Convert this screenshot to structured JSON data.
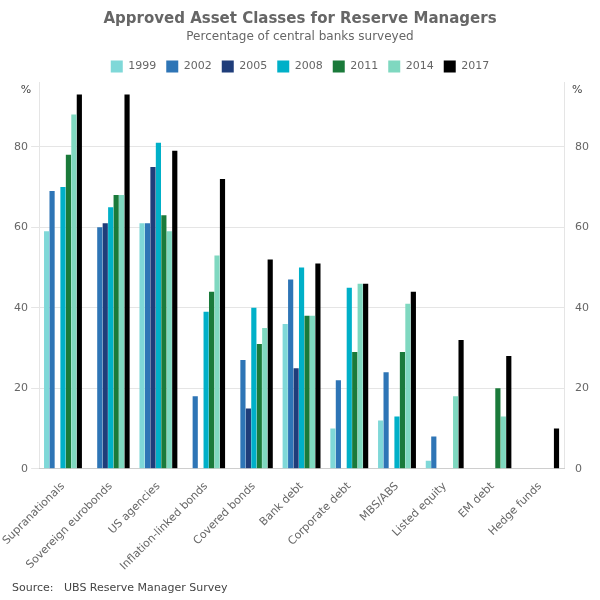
{
  "chart_data": {
    "type": "bar",
    "title": "Approved Asset Classes for Reserve Managers",
    "subtitle": "Percentage of central banks surveyed",
    "ylabel": "%",
    "y2label": "%",
    "source": "Source:   UBS Reserve Manager Survey",
    "categories": [
      "Supranationals",
      "Sovereign eurobonds",
      "US agencies",
      "Inflation-linked bonds",
      "Covered bonds",
      "Bank debt",
      "Corporate debt",
      "MBS/ABS",
      "Listed equity",
      "EM debt",
      "Hedge funds"
    ],
    "series": [
      {
        "name": "1999",
        "color": "#7fd8d8",
        "values": [
          59,
          0,
          61,
          0,
          0,
          36,
          10,
          12,
          2,
          0,
          0
        ]
      },
      {
        "name": "2002",
        "color": "#2e75b6",
        "values": [
          69,
          60,
          61,
          18,
          27,
          47,
          22,
          24,
          8,
          0,
          0
        ]
      },
      {
        "name": "2005",
        "color": "#1f3d7a",
        "values": [
          0,
          61,
          75,
          0,
          15,
          25,
          0,
          0,
          0,
          0,
          0
        ]
      },
      {
        "name": "2008",
        "color": "#00b0c8",
        "values": [
          70,
          65,
          81,
          39,
          40,
          50,
          45,
          13,
          0,
          0,
          0
        ]
      },
      {
        "name": "2011",
        "color": "#1a7a3a",
        "values": [
          78,
          68,
          63,
          44,
          31,
          38,
          29,
          29,
          0,
          20,
          0
        ]
      },
      {
        "name": "2014",
        "color": "#7fd8c0",
        "values": [
          88,
          68,
          59,
          53,
          35,
          38,
          46,
          41,
          18,
          13,
          0
        ]
      },
      {
        "name": "2017",
        "color": "#000000",
        "values": [
          93,
          93,
          79,
          72,
          52,
          51,
          46,
          44,
          32,
          28,
          10
        ]
      }
    ],
    "ylim": [
      0,
      96
    ],
    "yticks": [
      0,
      20,
      40,
      60,
      80
    ],
    "y2lim": [
      0,
      96
    ],
    "y2ticks": [
      0,
      20,
      40,
      60,
      80
    ],
    "grid": true,
    "legend": "top"
  }
}
